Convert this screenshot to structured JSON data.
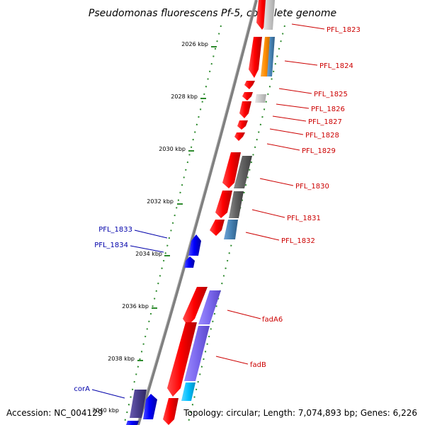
{
  "title": "Pseudomonas fluorescens Pf-5, complete genome",
  "footer": {
    "accession": "Accession: NC_004129",
    "summary": "Topology: circular; Length: 7,074,893 bp; Genes: 6,226"
  },
  "kbp_ticks": [
    "2026 kbp",
    "2028 kbp",
    "2030 kbp",
    "2032 kbp",
    "2034 kbp",
    "2036 kbp",
    "2038 kbp",
    "2040 kbp"
  ],
  "gene_labels_right": [
    "PFL_1823",
    "PFL_1824",
    "PFL_1825",
    "PFL_1826",
    "PFL_1827",
    "PFL_1828",
    "PFL_1829",
    "PFL_1830",
    "PFL_1831",
    "PFL_1832",
    "fadA6",
    "fadB"
  ],
  "gene_labels_left": [
    "PFL_1833",
    "PFL_1834",
    "corA"
  ],
  "colors": {
    "forward_gene": "#ff0000",
    "reverse_gene": "#0000ff",
    "right_label": "#cc0000",
    "left_label": "#0000aa",
    "backbone": "#808080",
    "dots": "#2e8b2e",
    "cog_gray": "#606060",
    "cog_purple": "#7b68ee",
    "cog_dark_purple": "#483d8b",
    "cog_blue": "#4682b4",
    "cog_orange": "#ff8c00",
    "cog_cyan": "#00bfff"
  }
}
